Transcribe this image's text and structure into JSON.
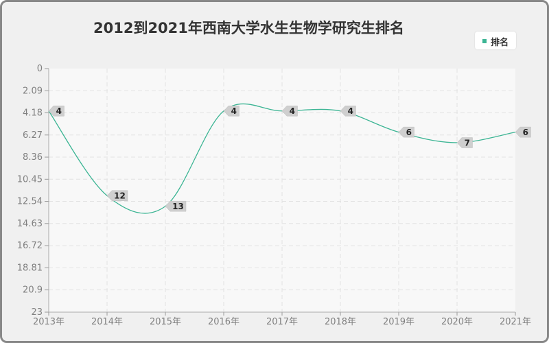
{
  "chart_data": {
    "type": "line",
    "title": "2012到2021年西南大学水生生物学研究生排名",
    "categories": [
      "2013年",
      "2014年",
      "2015年",
      "2016年",
      "2017年",
      "2018年",
      "2019年",
      "2020年",
      "2021年"
    ],
    "series": [
      {
        "name": "排名",
        "values": [
          4,
          12,
          13,
          4,
          4,
          4,
          6,
          7,
          6
        ]
      }
    ],
    "y_ticks": [
      "0",
      "2.09",
      "4.18",
      "6.27",
      "8.36",
      "10.45",
      "12.54",
      "14.63",
      "16.72",
      "18.81",
      "20.9",
      "23"
    ],
    "ylim": [
      0,
      23
    ],
    "y_inverted": true,
    "grid": true,
    "legend_position": "top-right",
    "line_color": "#3cb594",
    "grid_color": "#e2e2e2",
    "plot_background": "#f8f8f8"
  }
}
